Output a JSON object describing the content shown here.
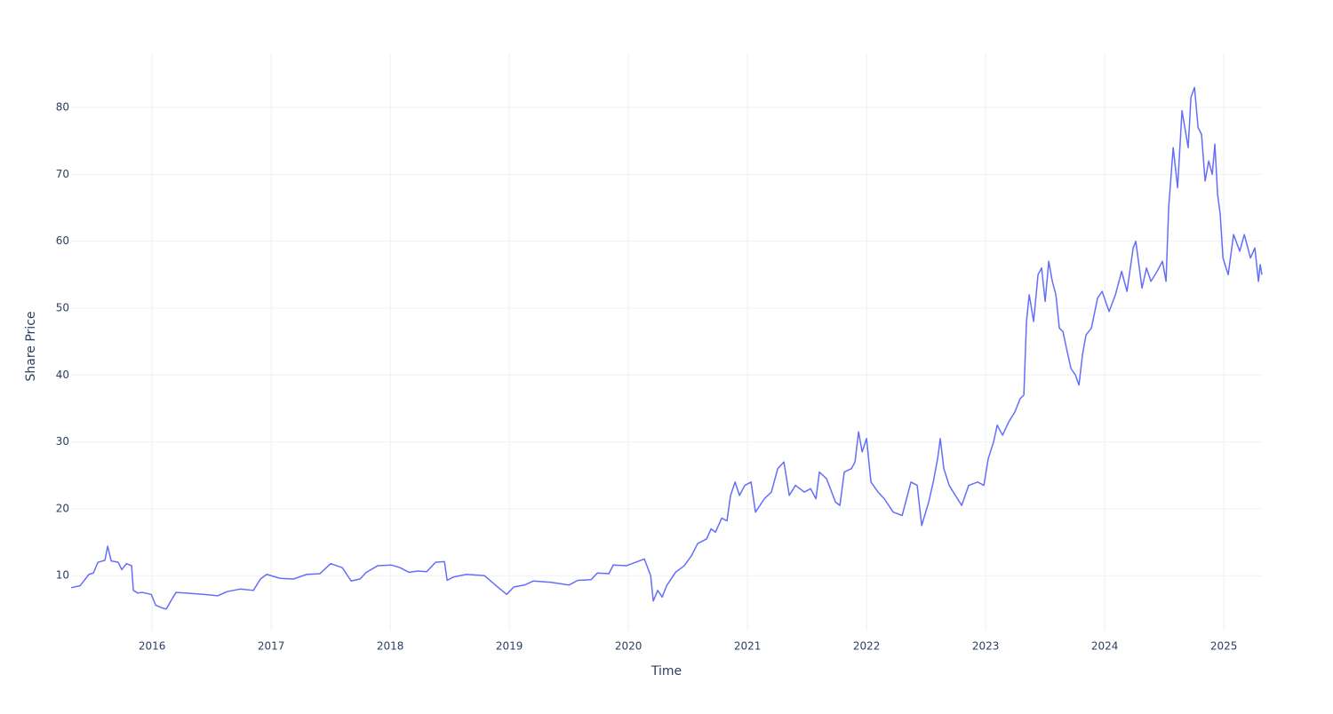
{
  "chart_data": {
    "type": "line",
    "x_label": "Time",
    "y_label": "Share Price",
    "color": "#636efa",
    "grid": true,
    "xlim": [
      2015.32,
      2025.32
    ],
    "xticks": [
      2016,
      2017,
      2018,
      2019,
      2020,
      2021,
      2022,
      2023,
      2024,
      2025
    ],
    "ylim": [
      1.8,
      88.1
    ],
    "yticks": [
      10,
      20,
      30,
      40,
      50,
      60,
      70,
      80
    ],
    "x": [
      2015.32,
      2015.396,
      2015.47,
      2015.507,
      2015.545,
      2015.604,
      2015.627,
      2015.657,
      2015.716,
      2015.746,
      2015.784,
      2015.828,
      2015.843,
      2015.881,
      2015.918,
      2015.993,
      2016.03,
      2016.082,
      2016.119,
      2016.157,
      2016.201,
      2016.291,
      2016.44,
      2016.552,
      2016.627,
      2016.739,
      2016.851,
      2016.91,
      2016.963,
      2017.075,
      2017.187,
      2017.299,
      2017.41,
      2017.5,
      2017.597,
      2017.672,
      2017.746,
      2017.799,
      2017.896,
      2018.007,
      2018.082,
      2018.157,
      2018.231,
      2018.306,
      2018.381,
      2018.455,
      2018.478,
      2018.53,
      2018.642,
      2018.791,
      2018.903,
      2018.978,
      2019.037,
      2019.127,
      2019.201,
      2019.351,
      2019.5,
      2019.575,
      2019.687,
      2019.739,
      2019.836,
      2019.873,
      2019.985,
      2020.06,
      2020.134,
      2020.187,
      2020.209,
      2020.246,
      2020.284,
      2020.321,
      2020.396,
      2020.47,
      2020.53,
      2020.582,
      2020.657,
      2020.694,
      2020.731,
      2020.784,
      2020.828,
      2020.858,
      2020.896,
      2020.933,
      2020.978,
      2021.03,
      2021.067,
      2021.142,
      2021.201,
      2021.254,
      2021.306,
      2021.351,
      2021.403,
      2021.478,
      2021.53,
      2021.575,
      2021.604,
      2021.664,
      2021.739,
      2021.776,
      2021.813,
      2021.873,
      2021.903,
      2021.933,
      2021.963,
      2022.0,
      2022.037,
      2022.097,
      2022.149,
      2022.224,
      2022.299,
      2022.373,
      2022.425,
      2022.463,
      2022.522,
      2022.56,
      2022.597,
      2022.619,
      2022.649,
      2022.694,
      2022.746,
      2022.799,
      2022.858,
      2022.933,
      2022.985,
      2023.022,
      2023.067,
      2023.097,
      2023.142,
      2023.194,
      2023.246,
      2023.291,
      2023.321,
      2023.343,
      2023.366,
      2023.403,
      2023.44,
      2023.47,
      2023.5,
      2023.53,
      2023.56,
      2023.59,
      2023.619,
      2023.649,
      2023.679,
      2023.716,
      2023.754,
      2023.784,
      2023.813,
      2023.843,
      2023.888,
      2023.94,
      2023.978,
      2024.037,
      2024.09,
      2024.142,
      2024.187,
      2024.239,
      2024.261,
      2024.313,
      2024.351,
      2024.388,
      2024.44,
      2024.485,
      2024.515,
      2024.537,
      2024.575,
      2024.612,
      2024.649,
      2024.701,
      2024.724,
      2024.754,
      2024.784,
      2024.813,
      2024.843,
      2024.873,
      2024.903,
      2024.925,
      2024.948,
      2024.97,
      2024.993,
      2025.037,
      2025.082,
      2025.134,
      2025.172,
      2025.224,
      2025.261,
      2025.291,
      2025.306,
      2025.32
    ],
    "values": [
      8.2,
      8.5,
      10.2,
      10.4,
      12,
      12.3,
      14.4,
      12.2,
      12,
      10.9,
      11.8,
      11.5,
      7.8,
      7.4,
      7.5,
      7.2,
      5.6,
      5.2,
      5.0,
      6.2,
      7.5,
      7.4,
      7.2,
      7.0,
      7.6,
      8.0,
      7.8,
      9.5,
      10.2,
      9.6,
      9.5,
      10.2,
      10.3,
      11.8,
      11.2,
      9.2,
      9.5,
      10.5,
      11.5,
      11.6,
      11.2,
      10.5,
      10.7,
      10.6,
      12,
      12.1,
      9.3,
      9.8,
      10.2,
      10,
      8.3,
      7.2,
      8.3,
      8.6,
      9.2,
      9,
      8.6,
      9.3,
      9.4,
      10.4,
      10.3,
      11.6,
      11.5,
      12,
      12.5,
      10,
      6.2,
      7.8,
      6.8,
      8.5,
      10.5,
      11.5,
      13,
      14.8,
      15.5,
      17,
      16.5,
      18.6,
      18.2,
      22,
      24,
      22,
      23.5,
      24,
      19.5,
      21.5,
      22.5,
      26,
      27,
      22,
      23.5,
      22.5,
      23,
      21.5,
      25.5,
      24.5,
      21,
      20.5,
      25.5,
      26,
      27,
      31.5,
      28.5,
      30.5,
      24,
      22.5,
      21.5,
      19.5,
      19,
      24,
      23.5,
      17.5,
      21,
      24,
      27.5,
      30.5,
      26,
      23.5,
      22,
      20.5,
      23.5,
      24,
      23.5,
      27.5,
      30,
      32.5,
      31,
      33,
      34.5,
      36.5,
      37,
      48,
      52,
      48,
      55,
      56,
      51,
      57,
      54,
      52,
      47,
      46.5,
      44,
      41,
      40,
      38.5,
      43,
      46,
      47,
      51.5,
      52.5,
      49.5,
      52,
      55.5,
      52.5,
      59,
      60,
      53,
      56,
      54,
      55.5,
      57,
      54,
      65,
      74,
      68,
      79.5,
      74,
      81.5,
      83,
      77,
      76,
      69,
      72,
      70,
      74.5,
      67,
      64,
      57.5,
      55,
      61,
      58.5,
      61,
      57.5,
      59,
      54,
      56.5,
      55
    ]
  }
}
